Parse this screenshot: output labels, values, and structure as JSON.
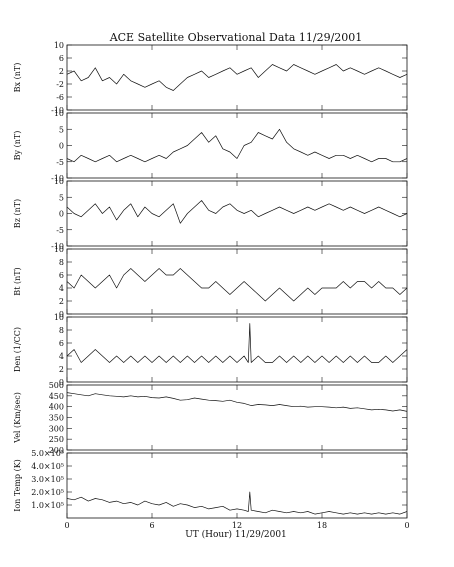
{
  "chart_data": {
    "type": "line",
    "title": "ACE Satellite Observational Data   11/29/2001",
    "xlabel": "UT (Hour)   11/29/2001",
    "x_ticks": [
      "0",
      "6",
      "12",
      "18",
      "0"
    ],
    "xlim": [
      0,
      24
    ],
    "panels": [
      {
        "id": "bx",
        "ylabel": "Bx (nT)",
        "ylim": [
          -10,
          10
        ],
        "y_ticks": [
          "-10",
          "-6",
          "-2",
          "2",
          "6",
          "10"
        ],
        "y_tick_values": [
          -10,
          -6,
          -2,
          2,
          6,
          10
        ],
        "series": [
          {
            "x": [
              0,
              0.5,
              1,
              1.5,
              2,
              2.5,
              3,
              3.5,
              4,
              4.5,
              5,
              5.5,
              6,
              6.5,
              7,
              7.5,
              8,
              8.5,
              9,
              9.5,
              10,
              10.5,
              11,
              11.5,
              12,
              12.5,
              13,
              13.5,
              14,
              14.5,
              15,
              15.5,
              16,
              16.5,
              17,
              17.5,
              18,
              18.5,
              19,
              19.5,
              20,
              20.5,
              21,
              21.5,
              22,
              22.5,
              23,
              23.5,
              24
            ],
            "y": [
              1,
              2,
              -1,
              0,
              3,
              -1,
              0,
              -2,
              1,
              -1,
              -2,
              -3,
              -2,
              -1,
              -3,
              -4,
              -2,
              0,
              1,
              2,
              0,
              1,
              2,
              3,
              1,
              2,
              3,
              0,
              2,
              4,
              3,
              2,
              4,
              3,
              2,
              1,
              2,
              3,
              4,
              2,
              3,
              2,
              1,
              2,
              3,
              2,
              1,
              0,
              1
            ]
          }
        ]
      },
      {
        "id": "by",
        "ylabel": "By (nT)",
        "ylim": [
          -10,
          10
        ],
        "y_ticks": [
          "-10",
          "-5",
          "0",
          "5",
          "10"
        ],
        "y_tick_values": [
          -10,
          -5,
          0,
          5,
          10
        ],
        "series": [
          {
            "x": [
              0,
              0.5,
              1,
              1.5,
              2,
              2.5,
              3,
              3.5,
              4,
              4.5,
              5,
              5.5,
              6,
              6.5,
              7,
              7.5,
              8,
              8.5,
              9,
              9.5,
              10,
              10.5,
              11,
              11.5,
              12,
              12.5,
              13,
              13.5,
              14,
              14.5,
              15,
              15.5,
              16,
              16.5,
              17,
              17.5,
              18,
              18.5,
              19,
              19.5,
              20,
              20.5,
              21,
              21.5,
              22,
              22.5,
              23,
              23.5,
              24
            ],
            "y": [
              -4,
              -5,
              -3,
              -4,
              -5,
              -4,
              -3,
              -5,
              -4,
              -3,
              -4,
              -5,
              -4,
              -3,
              -4,
              -2,
              -1,
              0,
              2,
              4,
              1,
              3,
              -1,
              -2,
              -4,
              0,
              1,
              4,
              3,
              2,
              5,
              1,
              -1,
              -2,
              -3,
              -2,
              -3,
              -4,
              -3,
              -3,
              -4,
              -3,
              -4,
              -5,
              -4,
              -4,
              -5,
              -5,
              -4
            ]
          }
        ]
      },
      {
        "id": "bz",
        "ylabel": "Bz (nT)",
        "ylim": [
          -10,
          10
        ],
        "y_ticks": [
          "-10",
          "-5",
          "0",
          "5",
          "10"
        ],
        "y_tick_values": [
          -10,
          -5,
          0,
          5,
          10
        ],
        "series": [
          {
            "x": [
              0,
              0.5,
              1,
              1.5,
              2,
              2.5,
              3,
              3.5,
              4,
              4.5,
              5,
              5.5,
              6,
              6.5,
              7,
              7.5,
              8,
              8.5,
              9,
              9.5,
              10,
              10.5,
              11,
              11.5,
              12,
              12.5,
              13,
              13.5,
              14,
              14.5,
              15,
              15.5,
              16,
              16.5,
              17,
              17.5,
              18,
              18.5,
              19,
              19.5,
              20,
              20.5,
              21,
              21.5,
              22,
              22.5,
              23,
              23.5,
              24
            ],
            "y": [
              2,
              0,
              -1,
              1,
              3,
              0,
              2,
              -2,
              1,
              3,
              -1,
              2,
              0,
              -1,
              1,
              3,
              -3,
              0,
              2,
              4,
              1,
              0,
              2,
              3,
              1,
              0,
              1,
              -1,
              0,
              1,
              2,
              1,
              0,
              1,
              2,
              1,
              2,
              3,
              2,
              1,
              2,
              1,
              0,
              1,
              2,
              1,
              0,
              -1,
              0
            ]
          }
        ]
      },
      {
        "id": "bt",
        "ylabel": "Bt (nT)",
        "ylim": [
          0,
          10
        ],
        "y_ticks": [
          "0",
          "2",
          "4",
          "6",
          "8",
          "10"
        ],
        "y_tick_values": [
          0,
          2,
          4,
          6,
          8,
          10
        ],
        "series": [
          {
            "x": [
              0,
              0.5,
              1,
              1.5,
              2,
              2.5,
              3,
              3.5,
              4,
              4.5,
              5,
              5.5,
              6,
              6.5,
              7,
              7.5,
              8,
              8.5,
              9,
              9.5,
              10,
              10.5,
              11,
              11.5,
              12,
              12.5,
              13,
              13.5,
              14,
              14.5,
              15,
              15.5,
              16,
              16.5,
              17,
              17.5,
              18,
              18.5,
              19,
              19.5,
              20,
              20.5,
              21,
              21.5,
              22,
              22.5,
              23,
              23.5,
              24
            ],
            "y": [
              5,
              4,
              6,
              5,
              4,
              5,
              6,
              4,
              6,
              7,
              6,
              5,
              6,
              7,
              6,
              6,
              7,
              6,
              5,
              4,
              4,
              5,
              4,
              3,
              4,
              5,
              4,
              3,
              2,
              3,
              4,
              3,
              2,
              3,
              4,
              3,
              4,
              4,
              4,
              5,
              4,
              5,
              5,
              4,
              5,
              4,
              4,
              3,
              4
            ]
          }
        ]
      },
      {
        "id": "den",
        "ylabel": "Den (1/CC)",
        "ylim": [
          0,
          10
        ],
        "y_ticks": [
          "0",
          "2",
          "4",
          "6",
          "8",
          "10"
        ],
        "y_tick_values": [
          0,
          2,
          4,
          6,
          8,
          10
        ],
        "series": [
          {
            "x": [
              0,
              0.5,
              1,
              1.5,
              2,
              2.5,
              3,
              3.5,
              4,
              4.5,
              5,
              5.5,
              6,
              6.5,
              7,
              7.5,
              8,
              8.5,
              9,
              9.5,
              10,
              10.5,
              11,
              11.5,
              12,
              12.5,
              12.8,
              12.9,
              13,
              13.5,
              14,
              14.5,
              15,
              15.5,
              16,
              16.5,
              17,
              17.5,
              18,
              18.5,
              19,
              19.5,
              20,
              20.5,
              21,
              21.5,
              22,
              22.5,
              23,
              23.5,
              24
            ],
            "y": [
              4,
              5,
              3,
              4,
              5,
              4,
              3,
              4,
              3,
              4,
              3,
              4,
              3,
              4,
              3,
              4,
              3,
              4,
              3,
              4,
              3,
              4,
              3,
              4,
              3,
              4,
              3,
              9,
              3,
              4,
              3,
              3,
              4,
              3,
              4,
              3,
              4,
              3,
              4,
              3,
              4,
              3,
              4,
              3,
              4,
              3,
              3,
              4,
              3,
              4,
              5
            ]
          }
        ]
      },
      {
        "id": "vel",
        "ylabel": "Vel (Km/sec)",
        "ylim": [
          200,
          500
        ],
        "y_ticks": [
          "200",
          "250",
          "300",
          "350",
          "400",
          "450",
          "500"
        ],
        "y_tick_values": [
          200,
          250,
          300,
          350,
          400,
          450,
          500
        ],
        "series": [
          {
            "x": [
              0,
              0.5,
              1,
              1.5,
              2,
              2.5,
              3,
              3.5,
              4,
              4.5,
              5,
              5.5,
              6,
              6.5,
              7,
              7.5,
              8,
              8.5,
              9,
              9.5,
              10,
              10.5,
              11,
              11.5,
              12,
              12.5,
              13,
              13.5,
              14,
              14.5,
              15,
              15.5,
              16,
              16.5,
              17,
              17.5,
              18,
              18.5,
              19,
              19.5,
              20,
              20.5,
              21,
              21.5,
              22,
              22.5,
              23,
              23.5,
              24
            ],
            "y": [
              465,
              460,
              455,
              450,
              460,
              455,
              450,
              448,
              445,
              450,
              445,
              448,
              442,
              440,
              445,
              438,
              430,
              432,
              440,
              435,
              430,
              428,
              425,
              430,
              420,
              415,
              405,
              410,
              408,
              405,
              410,
              405,
              400,
              402,
              398,
              400,
              400,
              398,
              395,
              398,
              392,
              395,
              390,
              385,
              388,
              385,
              380,
              385,
              378
            ]
          }
        ]
      },
      {
        "id": "temp",
        "ylabel": "Ion Temp (K)",
        "ylim": [
          0,
          500000
        ],
        "y_ticks": [
          "1.0×10⁵",
          "2.0×10⁵",
          "3.0×10⁵",
          "4.0×10⁵",
          "5.0×10⁵"
        ],
        "y_tick_values": [
          100000,
          200000,
          300000,
          400000,
          500000
        ],
        "series": [
          {
            "x": [
              0,
              0.5,
              1,
              1.5,
              2,
              2.5,
              3,
              3.5,
              4,
              4.5,
              5,
              5.5,
              6,
              6.5,
              7,
              7.5,
              8,
              8.5,
              9,
              9.5,
              10,
              10.5,
              11,
              11.5,
              12,
              12.5,
              12.8,
              12.9,
              13,
              13.5,
              14,
              14.5,
              15,
              15.5,
              16,
              16.5,
              17,
              17.5,
              18,
              18.5,
              19,
              19.5,
              20,
              20.5,
              21,
              21.5,
              22,
              22.5,
              23,
              23.5,
              24
            ],
            "y": [
              150000,
              140000,
              160000,
              130000,
              150000,
              140000,
              120000,
              130000,
              110000,
              120000,
              100000,
              130000,
              110000,
              100000,
              120000,
              90000,
              110000,
              100000,
              80000,
              90000,
              70000,
              80000,
              90000,
              60000,
              70000,
              60000,
              50000,
              200000,
              60000,
              50000,
              40000,
              60000,
              50000,
              40000,
              50000,
              40000,
              50000,
              30000,
              40000,
              50000,
              40000,
              30000,
              40000,
              30000,
              40000,
              30000,
              40000,
              30000,
              40000,
              30000,
              50000
            ]
          }
        ]
      }
    ]
  }
}
